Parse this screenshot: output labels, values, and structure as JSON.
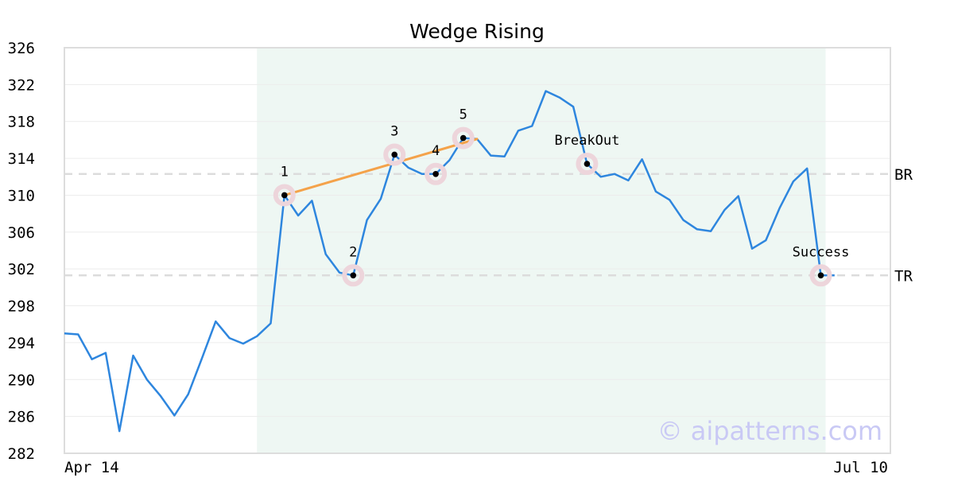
{
  "chart_data": {
    "type": "line",
    "title": "Wedge Rising",
    "ylim": [
      282,
      326
    ],
    "yticks": [
      282,
      286,
      290,
      294,
      298,
      302,
      306,
      310,
      314,
      318,
      322,
      326
    ],
    "xtick_labels": [
      {
        "index": 0,
        "label": "Apr 14"
      },
      {
        "index": 60,
        "label": "Jul 10"
      }
    ],
    "grid": true,
    "series": [
      {
        "color": "#2e86de",
        "values": [
          295.0,
          294.9,
          292.2,
          292.9,
          284.4,
          292.6,
          290.0,
          288.2,
          286.1,
          288.4,
          292.3,
          296.3,
          294.5,
          293.9,
          294.7,
          296.1,
          310.0,
          307.8,
          309.4,
          303.6,
          301.6,
          301.3,
          307.3,
          309.6,
          314.4,
          313.0,
          312.3,
          312.3,
          313.8,
          316.2,
          316.1,
          314.3,
          314.2,
          317.0,
          317.5,
          321.3,
          320.6,
          319.6,
          313.4,
          312.0,
          312.3,
          311.6,
          313.9,
          310.4,
          309.5,
          307.3,
          306.3,
          306.1,
          308.4,
          309.9,
          304.2,
          305.1,
          308.6,
          311.5,
          312.9,
          301.3,
          301.3
        ]
      }
    ],
    "highlight_range": {
      "start": 14,
      "end": 55,
      "color": "#eef7f3"
    },
    "pattern_points": [
      {
        "label": "1",
        "index": 16,
        "value": 310.0
      },
      {
        "label": "2",
        "index": 21,
        "value": 301.3
      },
      {
        "label": "3",
        "index": 24,
        "value": 314.4
      },
      {
        "label": "4",
        "index": 27,
        "value": 312.3
      },
      {
        "label": "5",
        "index": 29,
        "value": 316.2
      },
      {
        "label": "BreakOut",
        "index": 38,
        "value": 313.4
      },
      {
        "label": "Success",
        "index": 55,
        "value": 301.3
      }
    ],
    "trendline": {
      "color": "#f4a24a",
      "from": {
        "index": 16,
        "value": 310.0
      },
      "to": {
        "index": 30,
        "value": 316.1
      }
    },
    "reference_lines": [
      {
        "label": "BR",
        "value": 312.3
      },
      {
        "label": "TR",
        "value": 301.3
      }
    ]
  },
  "watermark": "© aipatterns.com"
}
